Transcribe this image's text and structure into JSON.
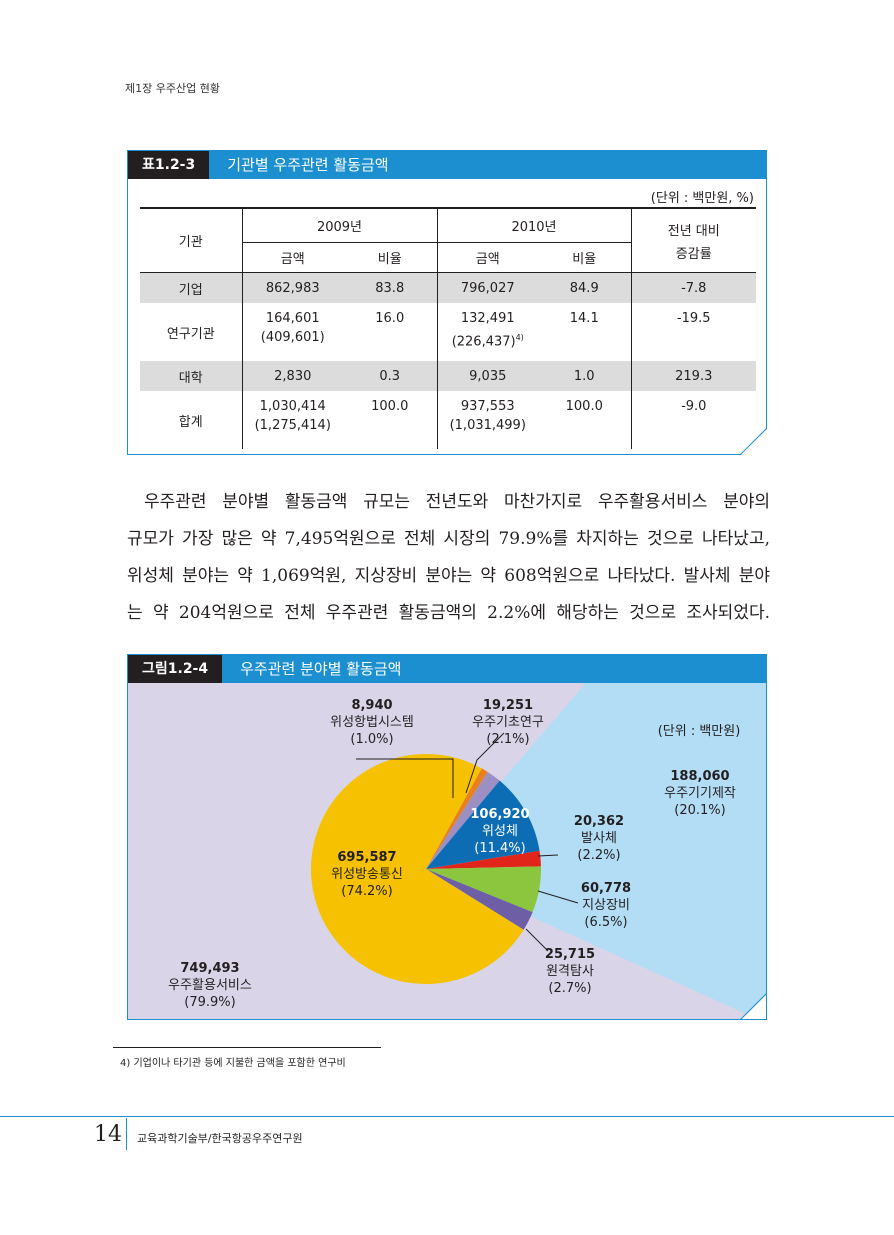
{
  "running_head": "제1장 우주산업 현황",
  "table": {
    "number": "표1.2-3",
    "title": "기관별 우주관련 활동금액",
    "unit": "(단위 : 백만원, %)",
    "col_institution": "기관",
    "year1": "2009년",
    "year2": "2010년",
    "col_amount": "금액",
    "col_ratio": "비율",
    "col_change": "전년 대비",
    "col_change2": "증감률",
    "rows": [
      {
        "name": "기업",
        "a1": "862,983",
        "a1b": "",
        "r1": "83.8",
        "a2": "796,027",
        "a2b": "",
        "r2": "84.9",
        "chg": "-7.8"
      },
      {
        "name": "연구기관",
        "a1": "164,601",
        "a1b": "(409,601)",
        "r1": "16.0",
        "a2": "132,491",
        "a2b": "(226,437)",
        "a2sup": "4)",
        "r2": "14.1",
        "chg": "-19.5"
      },
      {
        "name": "대학",
        "a1": "2,830",
        "a1b": "",
        "r1": "0.3",
        "a2": "9,035",
        "a2b": "",
        "r2": "1.0",
        "chg": "219.3"
      },
      {
        "name": "합계",
        "a1": "1,030,414",
        "a1b": "(1,275,414)",
        "r1": "100.0",
        "a2": "937,553",
        "a2b": "(1,031,499)",
        "r2": "100.0",
        "chg": "-9.0"
      }
    ]
  },
  "paragraph": [
    "우주관련 분야별 활동금액 규모는 전년도와 마찬가지로 우주활용서비스 분야의",
    "규모가 가장 많은 약 7,495억원으로 전체 시장의 79.9%를 차지하는 것으로 나타났고,",
    "위성체 분야는 약 1,069억원, 지상장비 분야는 약 608억원으로 나타났다. 발사체 분야",
    "는 약 204억원으로 전체 우주관련 활동금액의 2.2%에 해당하는 것으로 조사되었다."
  ],
  "figure": {
    "number": "그림1.2-4",
    "title": "우주관련 분야별 활동금액",
    "unit": "(단위 : 백만원)"
  },
  "chart_data": {
    "type": "pie",
    "unit": "(단위 : 백만원)",
    "slices": [
      {
        "label": "위성방송통신",
        "value": 695587,
        "percent": "74.2%",
        "color": "#f5c100"
      },
      {
        "label": "위성항법시스템",
        "value": 8940,
        "percent": "1.0%",
        "color": "#e8801f"
      },
      {
        "label": "우주기초연구",
        "value": 19251,
        "percent": "2.1%",
        "color": "#9b8fc4"
      },
      {
        "label": "위성체",
        "value": 106920,
        "percent": "11.4%",
        "color": "#0d6db4"
      },
      {
        "label": "발사체",
        "value": 20362,
        "percent": "2.2%",
        "color": "#e1251b"
      },
      {
        "label": "지상장비",
        "value": 60778,
        "percent": "6.5%",
        "color": "#8cc63f"
      },
      {
        "label": "원격탐사",
        "value": 25715,
        "percent": "2.7%",
        "color": "#6e5ea5"
      }
    ],
    "groups": [
      {
        "label": "우주활용서비스",
        "value": "749,493",
        "percent": "(79.9%)",
        "color": "#d9d4e8"
      },
      {
        "label": "우주기기제작",
        "value": "188,060",
        "percent": "(20.1%)",
        "color": "#b3ddf5"
      }
    ]
  },
  "footnote": "4) 기업이나 타기관 등에 지불한 금액을 포함한 연구비",
  "footer": {
    "page": "14",
    "org": "교육과학기술부/한국항공우주연구원"
  }
}
